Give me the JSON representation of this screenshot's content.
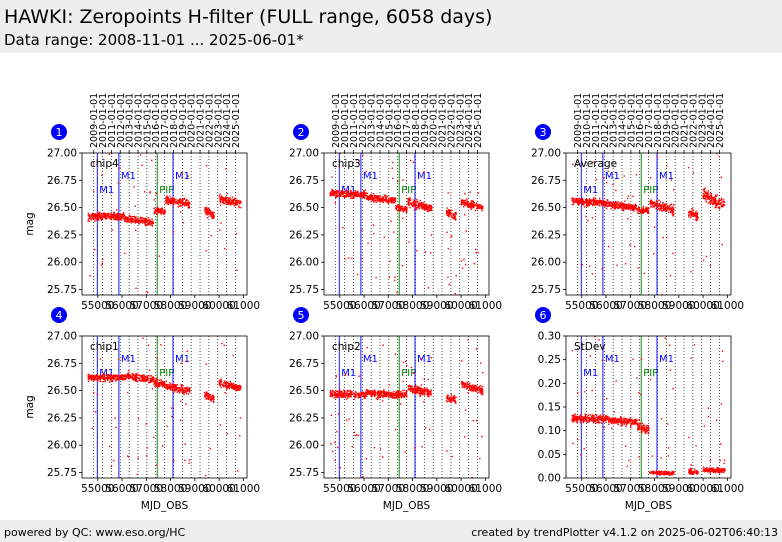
{
  "header": {
    "title": "HAWKI: Zeropoints H-filter (FULL range, 6058 days)",
    "subtitle": "Data range: 2008-11-01 ... 2025-06-01*"
  },
  "footer": {
    "left": "powered by QC: www.eso.org/HC",
    "right": "created by trendPlotter v4.1.2 on 2025-06-02T06:40:13"
  },
  "chart_data": {
    "type": "scatter",
    "x_axis": {
      "label": "MJD_OBS",
      "lim": [
        54350,
        61150
      ],
      "ticks": [
        55000,
        56000,
        57000,
        58000,
        59000,
        60000,
        61000
      ],
      "tick_labels": [
        "55000",
        "56000",
        "57000",
        "58000",
        "59000",
        "60000",
        "61000"
      ]
    },
    "top_axis": {
      "dates": [
        "2009-01-01",
        "2010-01-01",
        "2011-01-01",
        "2012-01-01",
        "2013-01-01",
        "2014-01-01",
        "2015-01-01",
        "2016-01-01",
        "2017-01-01",
        "2018-01-01",
        "2019-01-01",
        "2020-01-01",
        "2021-01-01",
        "2022-01-01",
        "2023-01-01",
        "2024-01-01",
        "2025-01-01"
      ],
      "mjd": [
        54832,
        55197,
        55562,
        55927,
        56293,
        56658,
        57023,
        57388,
        57754,
        58119,
        58484,
        58849,
        59215,
        59580,
        59945,
        60310,
        60676
      ]
    },
    "event_markers": [
      {
        "label": "M1",
        "mjd": 54980,
        "color": "#0000ff",
        "level": "low"
      },
      {
        "label": "M1",
        "mjd": 55870,
        "color": "#0000ff",
        "level": "high"
      },
      {
        "label": "PIP",
        "mjd": 57450,
        "color": "#008000",
        "level": "low"
      },
      {
        "label": "M1",
        "mjd": 58100,
        "color": "#0000ff",
        "level": "high"
      }
    ],
    "point_color": "#ff0000",
    "panels": [
      {
        "id": 1,
        "badge": "1",
        "name": "chip4",
        "ylabel": "mag",
        "ylim": [
          25.7,
          27.0
        ],
        "yticks": [
          25.75,
          26.0,
          26.25,
          26.5,
          26.75,
          27.0
        ],
        "ytick_labels": [
          "25.75",
          "26.00",
          "26.25",
          "26.50",
          "26.75",
          "27.00"
        ],
        "segments": [
          {
            "x": [
              54600,
              56100
            ],
            "start": 26.42,
            "end": 26.42,
            "spread": 0.05
          },
          {
            "x": [
              56100,
              57300
            ],
            "start": 26.4,
            "end": 26.36,
            "spread": 0.05
          },
          {
            "x": [
              57300,
              57780
            ],
            "start": 26.47,
            "end": 26.46,
            "spread": 0.05
          },
          {
            "x": [
              57800,
              58800
            ],
            "start": 26.57,
            "end": 26.53,
            "spread": 0.06
          },
          {
            "x": [
              59400,
              59800
            ],
            "start": 26.48,
            "end": 26.43,
            "spread": 0.06
          },
          {
            "x": [
              60000,
              60900
            ],
            "start": 26.58,
            "end": 26.54,
            "spread": 0.05
          }
        ]
      },
      {
        "id": 2,
        "badge": "2",
        "name": "chip3",
        "ylabel": "",
        "ylim": [
          25.7,
          27.0
        ],
        "yticks": [
          25.75,
          26.0,
          26.25,
          26.5,
          26.75,
          27.0
        ],
        "ytick_labels": [
          "25.75",
          "26.00",
          "26.25",
          "26.50",
          "26.75",
          "27.00"
        ],
        "segments": [
          {
            "x": [
              54600,
              56100
            ],
            "start": 26.63,
            "end": 26.62,
            "spread": 0.05
          },
          {
            "x": [
              56100,
              57300
            ],
            "start": 26.6,
            "end": 26.56,
            "spread": 0.05
          },
          {
            "x": [
              57300,
              57780
            ],
            "start": 26.5,
            "end": 26.48,
            "spread": 0.05
          },
          {
            "x": [
              57800,
              58800
            ],
            "start": 26.55,
            "end": 26.49,
            "spread": 0.06
          },
          {
            "x": [
              59400,
              59800
            ],
            "start": 26.46,
            "end": 26.42,
            "spread": 0.06
          },
          {
            "x": [
              60000,
              60900
            ],
            "start": 26.55,
            "end": 26.5,
            "spread": 0.05
          }
        ]
      },
      {
        "id": 3,
        "badge": "3",
        "name": "Average",
        "ylabel": "",
        "ylim": [
          25.7,
          27.0
        ],
        "yticks": [
          25.75,
          26.0,
          26.25,
          26.5,
          26.75,
          27.0
        ],
        "ytick_labels": [
          "25.75",
          "26.00",
          "26.25",
          "26.50",
          "26.75",
          "27.00"
        ],
        "segments": [
          {
            "x": [
              54600,
              56100
            ],
            "start": 26.56,
            "end": 26.54,
            "spread": 0.05
          },
          {
            "x": [
              56100,
              57300
            ],
            "start": 26.53,
            "end": 26.5,
            "spread": 0.05
          },
          {
            "x": [
              57300,
              57780
            ],
            "start": 26.48,
            "end": 26.47,
            "spread": 0.05
          },
          {
            "x": [
              57800,
              58800
            ],
            "start": 26.54,
            "end": 26.48,
            "spread": 0.06
          },
          {
            "x": [
              59400,
              59800
            ],
            "start": 26.45,
            "end": 26.42,
            "spread": 0.06
          },
          {
            "x": [
              60000,
              60900
            ],
            "start": 26.62,
            "end": 26.52,
            "spread": 0.08
          }
        ]
      },
      {
        "id": 4,
        "badge": "4",
        "name": "chip1",
        "ylabel": "mag",
        "ylim": [
          25.7,
          27.0
        ],
        "yticks": [
          25.75,
          26.0,
          26.25,
          26.5,
          26.75,
          27.0
        ],
        "ytick_labels": [
          "25.75",
          "26.00",
          "26.25",
          "26.50",
          "26.75",
          "27.00"
        ],
        "segments": [
          {
            "x": [
              54600,
              56100
            ],
            "start": 26.62,
            "end": 26.62,
            "spread": 0.05
          },
          {
            "x": [
              56100,
              57300
            ],
            "start": 26.64,
            "end": 26.6,
            "spread": 0.05
          },
          {
            "x": [
              57300,
              57780
            ],
            "start": 26.58,
            "end": 26.56,
            "spread": 0.05
          },
          {
            "x": [
              57800,
              58800
            ],
            "start": 26.55,
            "end": 26.49,
            "spread": 0.06
          },
          {
            "x": [
              59400,
              59800
            ],
            "start": 26.46,
            "end": 26.42,
            "spread": 0.06
          },
          {
            "x": [
              60000,
              60900
            ],
            "start": 26.57,
            "end": 26.52,
            "spread": 0.05
          }
        ]
      },
      {
        "id": 5,
        "badge": "5",
        "name": "chip2",
        "ylabel": "",
        "ylim": [
          25.7,
          27.0
        ],
        "yticks": [
          25.75,
          26.0,
          26.25,
          26.5,
          26.75,
          27.0
        ],
        "ytick_labels": [
          "25.75",
          "26.00",
          "26.25",
          "26.50",
          "26.75",
          "27.00"
        ],
        "segments": [
          {
            "x": [
              54600,
              56100
            ],
            "start": 26.47,
            "end": 26.46,
            "spread": 0.05
          },
          {
            "x": [
              56100,
              57300
            ],
            "start": 26.48,
            "end": 26.46,
            "spread": 0.05
          },
          {
            "x": [
              57300,
              57780
            ],
            "start": 26.47,
            "end": 26.46,
            "spread": 0.05
          },
          {
            "x": [
              57800,
              58800
            ],
            "start": 26.52,
            "end": 26.48,
            "spread": 0.06
          },
          {
            "x": [
              59400,
              59800
            ],
            "start": 26.44,
            "end": 26.41,
            "spread": 0.06
          },
          {
            "x": [
              60000,
              60900
            ],
            "start": 26.56,
            "end": 26.5,
            "spread": 0.05
          }
        ]
      },
      {
        "id": 6,
        "badge": "6",
        "name": "StDev",
        "ylabel": "",
        "ylim": [
          0.0,
          0.3
        ],
        "yticks": [
          0.0,
          0.05,
          0.1,
          0.15,
          0.2,
          0.25,
          0.3
        ],
        "ytick_labels": [
          "0.00",
          "0.05",
          "0.10",
          "0.15",
          "0.20",
          "0.25",
          "0.30"
        ],
        "segments": [
          {
            "x": [
              54600,
              56100
            ],
            "start": 0.125,
            "end": 0.125,
            "spread": 0.012
          },
          {
            "x": [
              56100,
              57300
            ],
            "start": 0.122,
            "end": 0.118,
            "spread": 0.012
          },
          {
            "x": [
              57300,
              57780
            ],
            "start": 0.11,
            "end": 0.1,
            "spread": 0.015
          },
          {
            "x": [
              57800,
              58800
            ],
            "start": 0.012,
            "end": 0.01,
            "spread": 0.006
          },
          {
            "x": [
              59400,
              59800
            ],
            "start": 0.015,
            "end": 0.012,
            "spread": 0.008
          },
          {
            "x": [
              60000,
              60900
            ],
            "start": 0.018,
            "end": 0.015,
            "spread": 0.008
          }
        ]
      }
    ]
  }
}
